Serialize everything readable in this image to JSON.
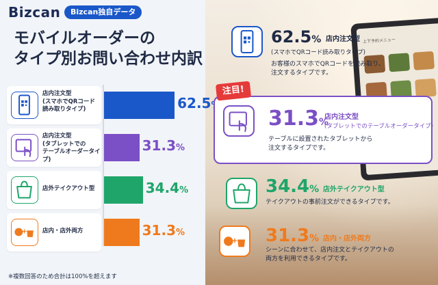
{
  "header": {
    "logo_main": "Bizcan",
    "badge": "Bizcan独自データ",
    "title_line1": "モバイルオーダーの",
    "title_line2": "タイプ別お問い合わせ内訳"
  },
  "colors": {
    "blue": "#1a57c9",
    "purple": "#7b4fc5",
    "green": "#1fa56a",
    "orange": "#ef7a1d",
    "red_tag": "#e63a3a"
  },
  "chart_data": {
    "type": "bar",
    "orientation": "horizontal",
    "categories": [
      "店内注文型\n(スマホでQRコード\n読み取りタイプ)",
      "店内注文型\n(タブレットでの\nテーブルオーダータイプ)",
      "店外テイクアウト型",
      "店内・店外両方"
    ],
    "values": [
      62.5,
      31.3,
      34.4,
      31.3
    ],
    "value_labels": [
      "62.5",
      "31.3",
      "34.4",
      "31.3"
    ],
    "unit": "%",
    "bar_colors": [
      "#1a57c9",
      "#7b4fc5",
      "#1fa56a",
      "#ef7a1d"
    ],
    "icons": [
      "qr-phone-icon",
      "tablet-touch-icon",
      "shopping-bag-icon",
      "dine-and-takeout-icon"
    ],
    "xlim": [
      0,
      100
    ]
  },
  "cards": [
    {
      "value": "62.5",
      "pct": "%",
      "type": "店内注文型",
      "sub": "(スマホでQRコード読み取りタイプ)",
      "desc": "お客様のスマホでQRコードを読み取り、\n注文するタイプです。"
    },
    {
      "value": "31.3",
      "pct": "%",
      "type": "店内注文型",
      "sub": "(タブレットでのテーブルオーダータイプ)",
      "desc": "テーブルに設置されたタブレットから\n注文するタイプです。",
      "tag": "注目!"
    },
    {
      "value": "34.4",
      "pct": "%",
      "type": "店外テイクアウト型",
      "sub": "",
      "desc": "テイクアウトの事前注文ができるタイプです。"
    },
    {
      "value": "31.3",
      "pct": "%",
      "type": "店内・店外両方",
      "sub": "",
      "desc": "シーンに合わせて、店内注文とテイクアウトの\n両方を利用できるタイプです。"
    }
  ],
  "tablet_screen_title": "上下予約メニュー",
  "footnote": "※複数回答のため合計は100%を超えます"
}
